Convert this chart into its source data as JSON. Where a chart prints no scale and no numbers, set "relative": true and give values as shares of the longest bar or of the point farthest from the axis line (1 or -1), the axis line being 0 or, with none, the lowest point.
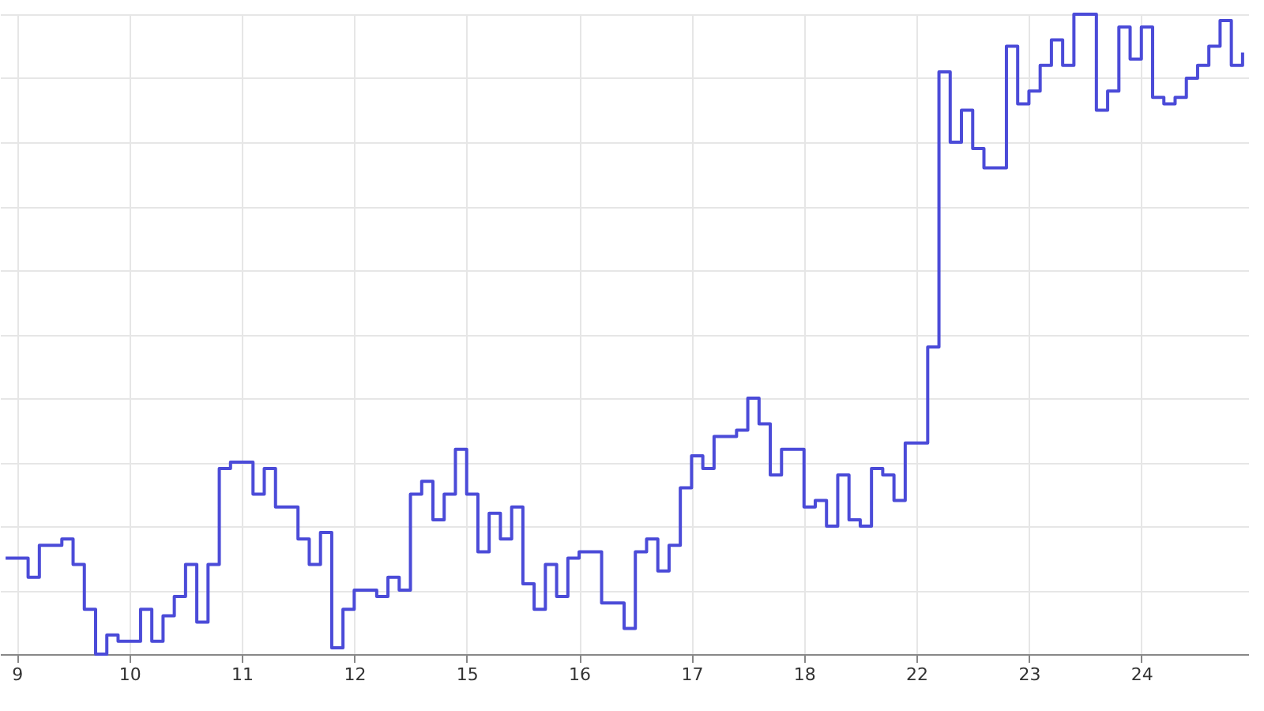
{
  "chart_data": {
    "type": "step",
    "relative": true,
    "grid": true,
    "categories": [
      null,
      "9",
      null,
      null,
      null,
      null,
      null,
      null,
      null,
      null,
      null,
      "10",
      null,
      null,
      null,
      null,
      null,
      null,
      null,
      null,
      null,
      "11",
      null,
      null,
      null,
      null,
      null,
      null,
      null,
      null,
      null,
      "12",
      null,
      null,
      null,
      null,
      null,
      null,
      null,
      null,
      null,
      "15",
      null,
      null,
      null,
      null,
      null,
      null,
      null,
      null,
      null,
      "16",
      null,
      null,
      null,
      null,
      null,
      null,
      null,
      null,
      null,
      "17",
      null,
      null,
      null,
      null,
      null,
      null,
      null,
      null,
      null,
      "18",
      null,
      null,
      null,
      null,
      null,
      null,
      null,
      null,
      null,
      "22",
      null,
      null,
      null,
      null,
      null,
      null,
      null,
      null,
      null,
      "23",
      null,
      null,
      null,
      null,
      null,
      null,
      null,
      null,
      null,
      "24",
      null,
      null,
      null,
      null,
      null,
      null,
      null,
      null,
      null
    ],
    "series": [
      {
        "color": "#4b4bd8",
        "values": [
          0.15,
          0.15,
          0.12,
          0.17,
          0.17,
          0.18,
          0.14,
          0.07,
          0,
          0.03,
          0.02,
          0.02,
          0.07,
          0.02,
          0.06,
          0.09,
          0.14,
          0.05,
          0.14,
          0.29,
          0.3,
          0.3,
          0.25,
          0.29,
          0.23,
          0.23,
          0.18,
          0.14,
          0.19,
          0.01,
          0.07,
          0.1,
          0.1,
          0.09,
          0.12,
          0.1,
          0.25,
          0.27,
          0.21,
          0.25,
          0.32,
          0.25,
          0.16,
          0.22,
          0.18,
          0.23,
          0.11,
          0.07,
          0.14,
          0.09,
          0.15,
          0.16,
          0.16,
          0.08,
          0.08,
          0.04,
          0.16,
          0.18,
          0.13,
          0.17,
          0.26,
          0.31,
          0.29,
          0.34,
          0.34,
          0.35,
          0.4,
          0.36,
          0.28,
          0.32,
          0.32,
          0.23,
          0.24,
          0.2,
          0.28,
          0.21,
          0.2,
          0.29,
          0.28,
          0.24,
          0.33,
          0.33,
          0.48,
          0.91,
          0.8,
          0.85,
          0.79,
          0.76,
          0.76,
          0.95,
          0.86,
          0.88,
          0.92,
          0.96,
          0.92,
          1,
          1,
          0.85,
          0.88,
          0.98,
          0.93,
          0.98,
          0.87,
          0.86,
          0.87,
          0.9,
          0.92,
          0.95,
          0.99,
          0.92,
          0.94
        ]
      }
    ]
  }
}
